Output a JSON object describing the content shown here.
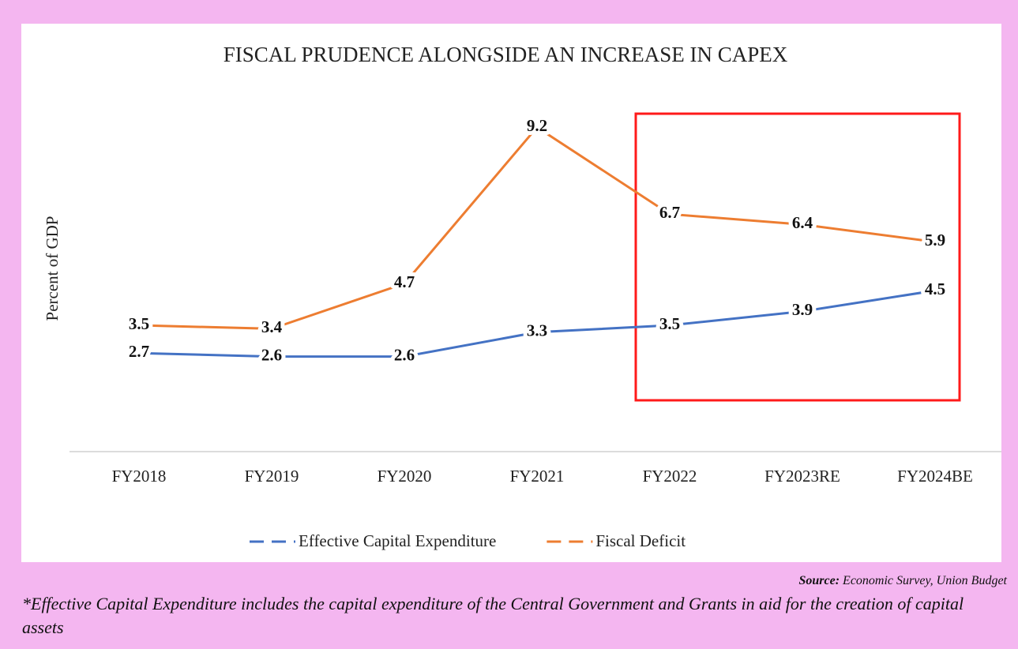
{
  "chart_data": {
    "type": "line",
    "title": "FISCAL PRUDENCE ALONGSIDE AN INCREASE IN CAPEX",
    "ylabel": "Percent of GDP",
    "categories": [
      "FY2018",
      "FY2019",
      "FY2020",
      "FY2021",
      "FY2022",
      "FY2023RE",
      "FY2024BE"
    ],
    "series": [
      {
        "name": "Effective Capital Expenditure",
        "color": "#4472c4",
        "values": [
          2.7,
          2.6,
          2.6,
          3.3,
          3.5,
          3.9,
          4.5
        ]
      },
      {
        "name": "Fiscal Deficit",
        "color": "#ed7d31",
        "values": [
          3.5,
          3.4,
          4.7,
          9.2,
          6.7,
          6.4,
          5.9
        ]
      }
    ],
    "ylim": [
      0,
      10
    ],
    "legend": "bottom",
    "grid": false
  },
  "source_label": "Source:",
  "source": "Economic Survey, Union Budget",
  "note": "*Effective Capital Expenditure includes the capital expenditure of the Central Government and Grants in aid for the creation of capital assets"
}
